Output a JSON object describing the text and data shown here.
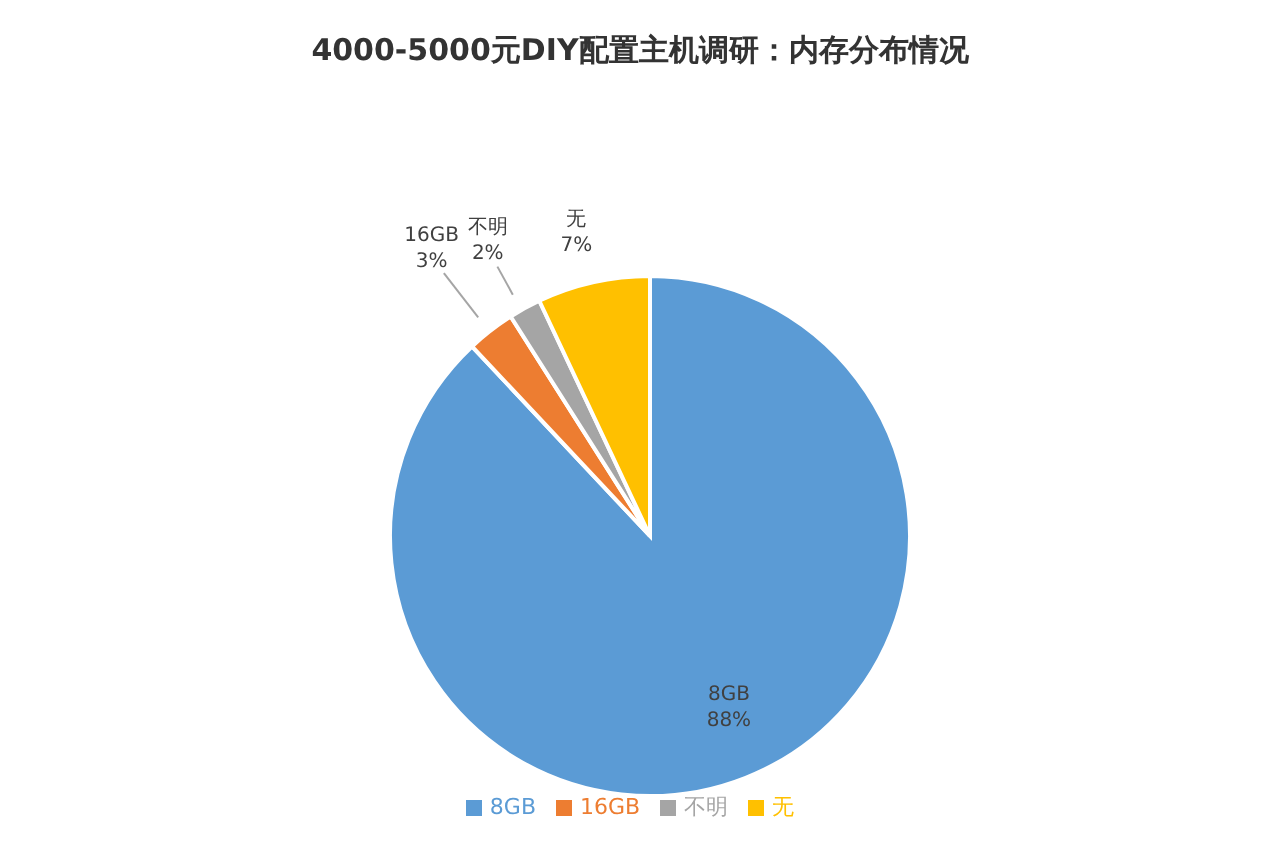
{
  "chart_data": {
    "type": "pie",
    "title": "4000-5000元DIY配置主机调研：内存分布情况",
    "categories": [
      "8GB",
      "16GB",
      "不明",
      "无"
    ],
    "values": [
      88,
      3,
      2,
      7
    ],
    "colors": [
      "#5b9bd5",
      "#ed7d31",
      "#a5a5a5",
      "#ffc000"
    ],
    "value_labels": [
      "88%",
      "3%",
      "2%",
      "7%"
    ],
    "legend": "bottom"
  }
}
